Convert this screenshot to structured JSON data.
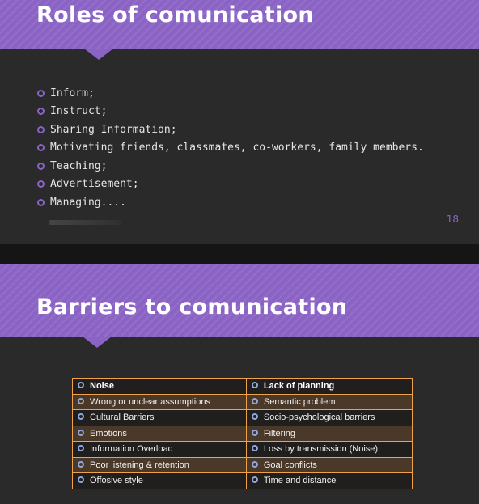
{
  "slide1": {
    "title": "Roles of comunication",
    "bullets": [
      "Inform;",
      "Instruct;",
      "Sharing Information;",
      "Motivating friends, classmates, co-workers, family members.",
      "Teaching;",
      "Advertisement;",
      "Managing...."
    ],
    "page_number": "18"
  },
  "slide2": {
    "title": "Barriers to comunication",
    "table": {
      "rows": [
        [
          "Noise",
          "Lack of planning"
        ],
        [
          "Wrong or unclear assumptions",
          "Semantic problem"
        ],
        [
          "Cultural Barriers",
          "Socio-psychological barriers"
        ],
        [
          "Emotions",
          "Filtering"
        ],
        [
          "Information Overload",
          "Loss by transmission (Noise)"
        ],
        [
          "Poor listening & retention",
          "Goal conflicts"
        ],
        [
          "Offosive style",
          "Time and distance"
        ]
      ]
    }
  },
  "colors": {
    "accent": "#8a63c4",
    "table_border": "#f0a24a",
    "background": "#2a2a2a"
  }
}
